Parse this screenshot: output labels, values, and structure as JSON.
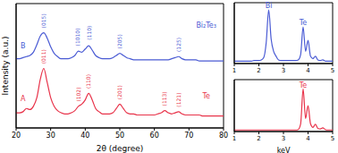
{
  "chart_data": [
    {
      "type": "line",
      "xlabel": "2θ (degree)",
      "ylabel": "Intensity (a.u.)",
      "tick_labels": "x",
      "xlim": [
        20,
        80
      ],
      "xticks": [
        20,
        30,
        40,
        50,
        60,
        70,
        80
      ],
      "ylim": [
        0,
        115
      ],
      "x": [
        20,
        21,
        22,
        23,
        24,
        25,
        26,
        27,
        28,
        29,
        30,
        31,
        32,
        33,
        34,
        35,
        36,
        37,
        38,
        39,
        40,
        41,
        42,
        43,
        44,
        45,
        46,
        47,
        48,
        49,
        50,
        51,
        52,
        53,
        54,
        55,
        56,
        57,
        58,
        59,
        60,
        61,
        62,
        63,
        64,
        65,
        66,
        67,
        68,
        69,
        70,
        71,
        72,
        73,
        74,
        75,
        76,
        77,
        78,
        79,
        80
      ],
      "series": [
        {
          "color": "#4a5bd4",
          "values": [
            64,
            64,
            65,
            66,
            67,
            70,
            77,
            85,
            88,
            83,
            75,
            69,
            66,
            64,
            64,
            64,
            65,
            67,
            71,
            70,
            73,
            76,
            72,
            67,
            65,
            64,
            64,
            64,
            65,
            67,
            69,
            67,
            65,
            64,
            63,
            63,
            63,
            63,
            63,
            63,
            63,
            63,
            63,
            63,
            63,
            64,
            65,
            66,
            64,
            63,
            63,
            63,
            63,
            62,
            62,
            62,
            62,
            62,
            62,
            62,
            62
          ]
        },
        {
          "color": "#e8334a",
          "values": [
            14,
            14,
            15,
            18,
            17,
            20,
            28,
            45,
            55,
            42,
            28,
            20,
            16,
            14,
            13,
            13,
            14,
            16,
            20,
            22,
            26,
            32,
            26,
            18,
            15,
            13,
            13,
            13,
            14,
            18,
            22,
            18,
            14,
            13,
            13,
            12,
            12,
            12,
            12,
            12,
            12,
            13,
            14,
            16,
            14,
            13,
            14,
            15,
            13,
            12,
            12,
            12,
            12,
            12,
            11,
            11,
            11,
            11,
            11,
            11,
            11
          ]
        }
      ],
      "annotations": [
        {
          "text": "(015)",
          "x": 28,
          "y": 99,
          "color": "#4a5bd4"
        },
        {
          "text": "(1010)",
          "x": 37.8,
          "y": 84,
          "color": "#4a5bd4"
        },
        {
          "text": "(110)",
          "x": 41.2,
          "y": 88,
          "color": "#4a5bd4"
        },
        {
          "text": "(205)",
          "x": 50,
          "y": 80,
          "color": "#4a5bd4"
        },
        {
          "text": "(125)",
          "x": 67,
          "y": 77,
          "color": "#4a5bd4"
        },
        {
          "text": "(011)",
          "x": 28,
          "y": 66,
          "color": "#e8334a"
        },
        {
          "text": "(102)",
          "x": 38,
          "y": 31,
          "color": "#e8334a"
        },
        {
          "text": "(110)",
          "x": 41,
          "y": 43,
          "color": "#e8334a"
        },
        {
          "text": "(201)",
          "x": 50,
          "y": 33,
          "color": "#e8334a"
        },
        {
          "text": "(113)",
          "x": 63,
          "y": 27,
          "color": "#e8334a"
        },
        {
          "text": "(121)",
          "x": 67,
          "y": 26,
          "color": "#e8334a"
        },
        {
          "text": "B",
          "x": 22,
          "y": 76,
          "color": "#4a5bd4"
        },
        {
          "text": "A",
          "x": 22,
          "y": 27,
          "color": "#e8334a"
        },
        {
          "text": "Bi₂Te₃",
          "x": 75,
          "y": 95,
          "color": "#4a5bd4"
        },
        {
          "text": "Te",
          "x": 75,
          "y": 30,
          "color": "#e8334a"
        }
      ]
    },
    {
      "type": "line",
      "tick_labels": "x",
      "xlim": [
        1,
        5
      ],
      "xticks": [
        1,
        2,
        3,
        4,
        5
      ],
      "ylim": [
        0,
        100
      ],
      "x": [
        1.0,
        1.1,
        1.2,
        1.3,
        1.4,
        1.5,
        1.6,
        1.7,
        1.8,
        1.9,
        2.0,
        2.1,
        2.2,
        2.3,
        2.4,
        2.5,
        2.6,
        2.7,
        2.8,
        2.9,
        3.0,
        3.1,
        3.2,
        3.3,
        3.4,
        3.5,
        3.6,
        3.7,
        3.8,
        3.9,
        4.0,
        4.1,
        4.2,
        4.3,
        4.4,
        4.5,
        4.6,
        4.7,
        4.8,
        4.9,
        5.0
      ],
      "series": [
        {
          "color": "#4a5bd4",
          "values": [
            4,
            4,
            4,
            4,
            4,
            4,
            4,
            4,
            5,
            5,
            5,
            6,
            10,
            35,
            88,
            40,
            20,
            12,
            6,
            5,
            5,
            5,
            5,
            5,
            5,
            5,
            6,
            15,
            60,
            20,
            38,
            12,
            8,
            12,
            6,
            5,
            6,
            4,
            4,
            4,
            4
          ]
        }
      ],
      "annotations": [
        {
          "text": "Bi",
          "x": 2.4,
          "y": 95,
          "color": "#4a5bd4"
        },
        {
          "text": "Te",
          "x": 3.8,
          "y": 68,
          "color": "#4a5bd4"
        }
      ]
    },
    {
      "type": "line",
      "xlabel": "keV",
      "tick_labels": "x",
      "xlim": [
        1,
        5
      ],
      "xticks": [
        1,
        2,
        3,
        4,
        5
      ],
      "ylim": [
        0,
        100
      ],
      "x": [
        1.0,
        1.1,
        1.2,
        1.3,
        1.4,
        1.5,
        1.6,
        1.7,
        1.8,
        1.9,
        2.0,
        2.1,
        2.2,
        2.3,
        2.4,
        2.5,
        2.6,
        2.7,
        2.8,
        2.9,
        3.0,
        3.1,
        3.2,
        3.3,
        3.4,
        3.5,
        3.6,
        3.7,
        3.8,
        3.9,
        4.0,
        4.1,
        4.2,
        4.3,
        4.4,
        4.5,
        4.6,
        4.7,
        4.8,
        4.9,
        5.0
      ],
      "series": [
        {
          "color": "#e8334a",
          "values": [
            3,
            3,
            3,
            3,
            3,
            3,
            3,
            3,
            3,
            3,
            3,
            3,
            3,
            3,
            3,
            3,
            3,
            3,
            3,
            3,
            3,
            3,
            3,
            3,
            3,
            3,
            4,
            15,
            82,
            25,
            50,
            15,
            8,
            14,
            6,
            5,
            7,
            4,
            3,
            3,
            3
          ]
        }
      ],
      "annotations": [
        {
          "text": "Te",
          "x": 3.8,
          "y": 90,
          "color": "#e8334a"
        }
      ]
    }
  ]
}
